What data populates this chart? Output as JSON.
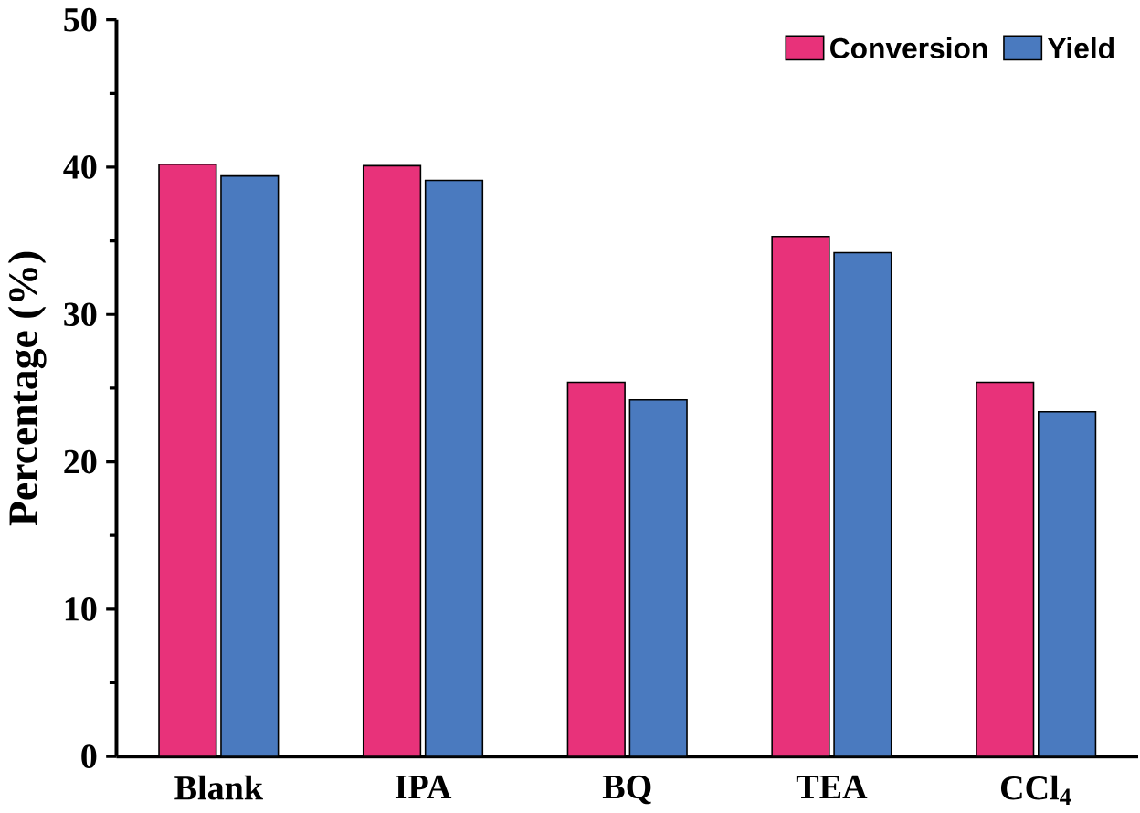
{
  "chart_data": {
    "type": "bar",
    "ylabel": "Percentage (%)",
    "categories": [
      "Blank",
      "IPA",
      "BQ",
      "TEA",
      "CCl$_{4}$"
    ],
    "series": [
      {
        "name": "Conversion",
        "color": "#e8327a",
        "values": [
          40.2,
          40.1,
          25.4,
          35.3,
          25.4
        ]
      },
      {
        "name": "Yield",
        "color": "#4a7abf",
        "values": [
          39.4,
          39.1,
          24.2,
          34.2,
          23.4
        ]
      }
    ],
    "ylim": [
      0,
      50
    ],
    "yticks": [
      0,
      10,
      20,
      30,
      40,
      50
    ],
    "legend": "top right",
    "grid": false
  }
}
